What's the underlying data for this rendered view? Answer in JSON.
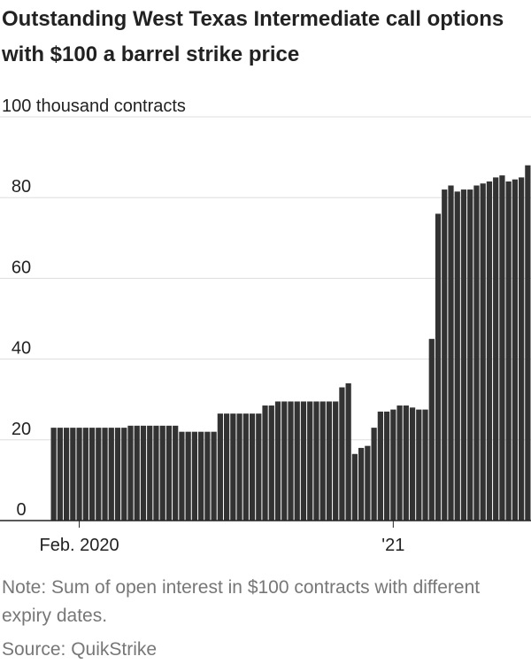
{
  "chart_data": {
    "type": "bar",
    "title": "Outstanding West Texas Intermediate call options with $100 a barrel strike price",
    "note": "Note: Sum of open interest in $100 contracts with different expiry dates.",
    "source": "Source: QuikStrike",
    "categories": [
      null,
      null,
      null,
      null,
      "Feb. 2020",
      null,
      null,
      null,
      null,
      null,
      null,
      null,
      null,
      null,
      null,
      null,
      null,
      null,
      null,
      null,
      null,
      null,
      null,
      null,
      null,
      null,
      null,
      null,
      null,
      null,
      null,
      null,
      null,
      null,
      null,
      null,
      null,
      null,
      null,
      null,
      null,
      null,
      null,
      null,
      null,
      null,
      null,
      null,
      null,
      null,
      null,
      null,
      null,
      "'21",
      null,
      null,
      null,
      null,
      null,
      null,
      null,
      null,
      null,
      null,
      null,
      null,
      null,
      null,
      null,
      null,
      null,
      null,
      null,
      null,
      null
    ],
    "values": [
      23,
      23,
      23,
      23,
      23,
      23,
      23,
      23,
      23,
      23,
      23,
      23,
      23.5,
      23.5,
      23.5,
      23.5,
      23.5,
      23.5,
      23.5,
      23.5,
      22,
      22,
      22,
      22,
      22,
      22,
      26.5,
      26.5,
      26.5,
      26.5,
      26.5,
      26.5,
      26.5,
      28.5,
      28.5,
      29.5,
      29.5,
      29.5,
      29.5,
      29.5,
      29.5,
      29.5,
      29.5,
      29.5,
      29.5,
      33,
      34,
      16.5,
      18,
      18.5,
      23,
      27,
      27,
      27.5,
      28.5,
      28.5,
      28,
      27.5,
      27.5,
      45,
      76,
      82,
      83,
      81.5,
      82,
      82,
      83,
      83.5,
      84,
      85,
      85.5,
      84,
      84.5,
      85,
      88
    ],
    "color": "#333333",
    "ylim": [
      0,
      100
    ],
    "yticks": [
      0,
      20,
      40,
      60,
      80,
      {
        "value": 100,
        "label": "100 thousand contracts"
      }
    ],
    "grid": true
  }
}
